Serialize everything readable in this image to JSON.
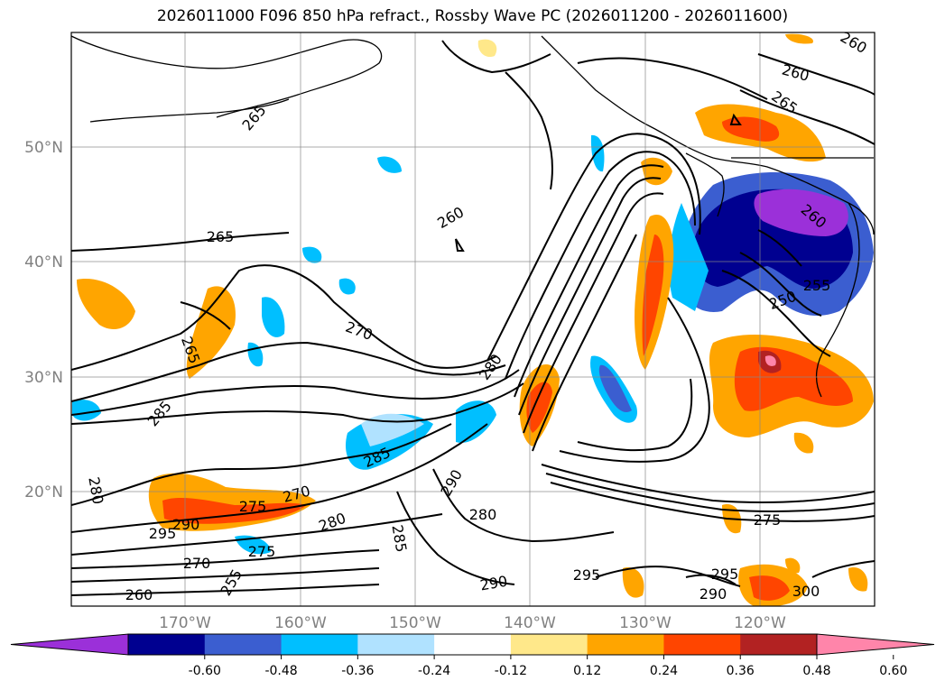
{
  "title": "2026011000 F096 850 hPa refract., Rossby Wave PC (2026011200 - 2026011600)",
  "latitude_labels": [
    "50°N",
    "40°N",
    "30°N",
    "20°N"
  ],
  "longitude_labels": [
    "170°W",
    "160°W",
    "150°W",
    "140°W",
    "130°W",
    "120°W"
  ],
  "colorbar": {
    "colors": [
      "#9b30d9",
      "#000090",
      "#3b5ed0",
      "#00bfff",
      "#b0e2ff",
      "#ffffff",
      "#ffe88a",
      "#ffa500",
      "#ff4500",
      "#b22222",
      "#ff85aa"
    ],
    "tick_labels": [
      "-0.60",
      "-0.48",
      "-0.36",
      "-0.24",
      "-0.12",
      "0.12",
      "0.24",
      "0.36",
      "0.48",
      "0.60"
    ]
  },
  "contour_labels": [
    "265",
    "260",
    "265",
    "260",
    "265",
    "270",
    "265",
    "285",
    "280",
    "260",
    "260",
    "255",
    "250",
    "280",
    "285",
    "290",
    "280",
    "270",
    "275",
    "295",
    "290",
    "270",
    "275",
    "280",
    "260",
    "255",
    "285",
    "290",
    "295",
    "295",
    "290",
    "300",
    "275"
  ]
}
